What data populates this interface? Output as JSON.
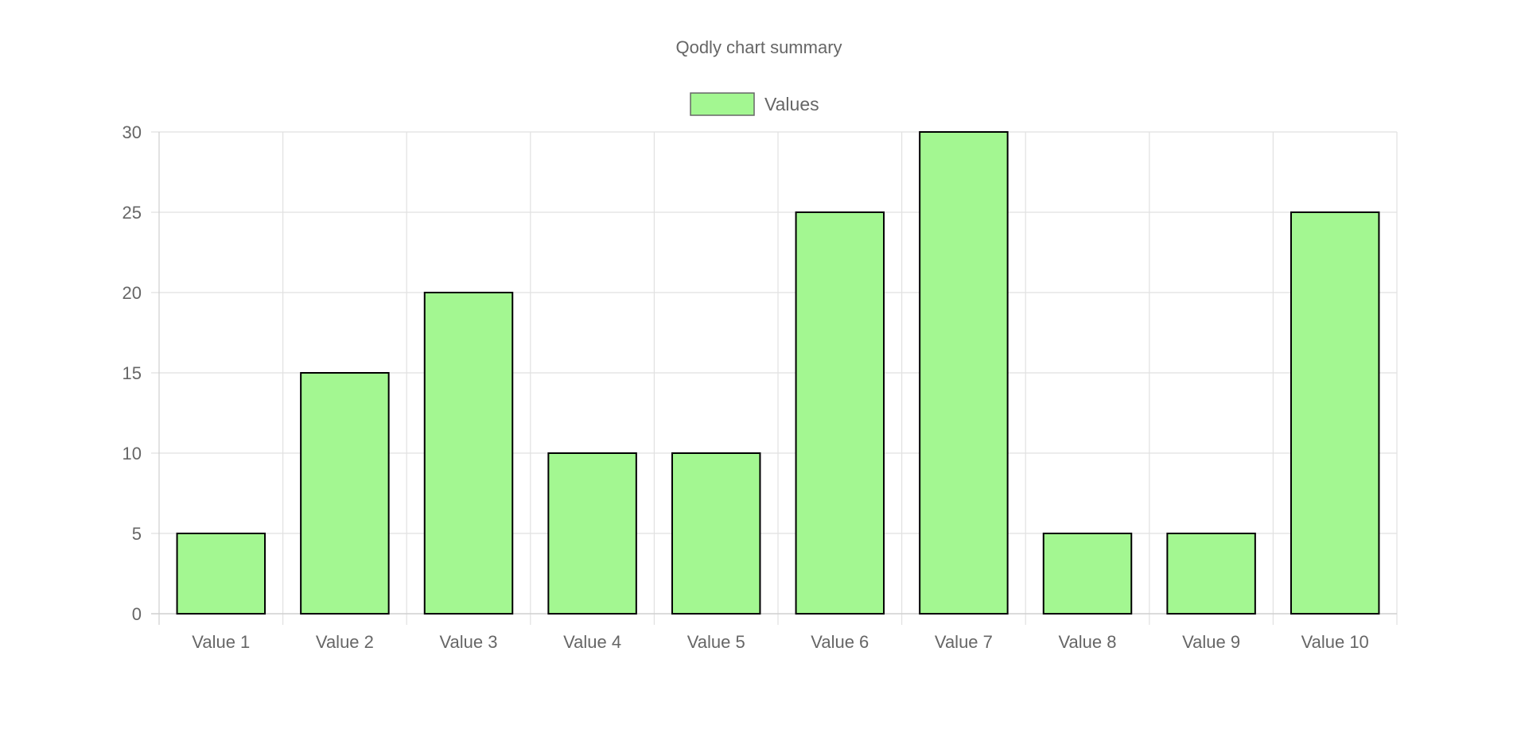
{
  "chart_data": {
    "type": "bar",
    "title": "Qodly chart summary",
    "categories": [
      "Value 1",
      "Value 2",
      "Value 3",
      "Value 4",
      "Value 5",
      "Value 6",
      "Value 7",
      "Value 8",
      "Value 9",
      "Value 10"
    ],
    "series": [
      {
        "name": "Values",
        "values": [
          5,
          15,
          20,
          10,
          10,
          25,
          30,
          5,
          5,
          25
        ],
        "color": "#a3f791",
        "border_color": "#000000"
      }
    ],
    "xlabel": "",
    "ylabel": "",
    "ylim": [
      0,
      30
    ],
    "y_ticks": [
      "0",
      "5",
      "10",
      "15",
      "20",
      "25",
      "30"
    ],
    "grid": true,
    "legend_position": "top"
  }
}
